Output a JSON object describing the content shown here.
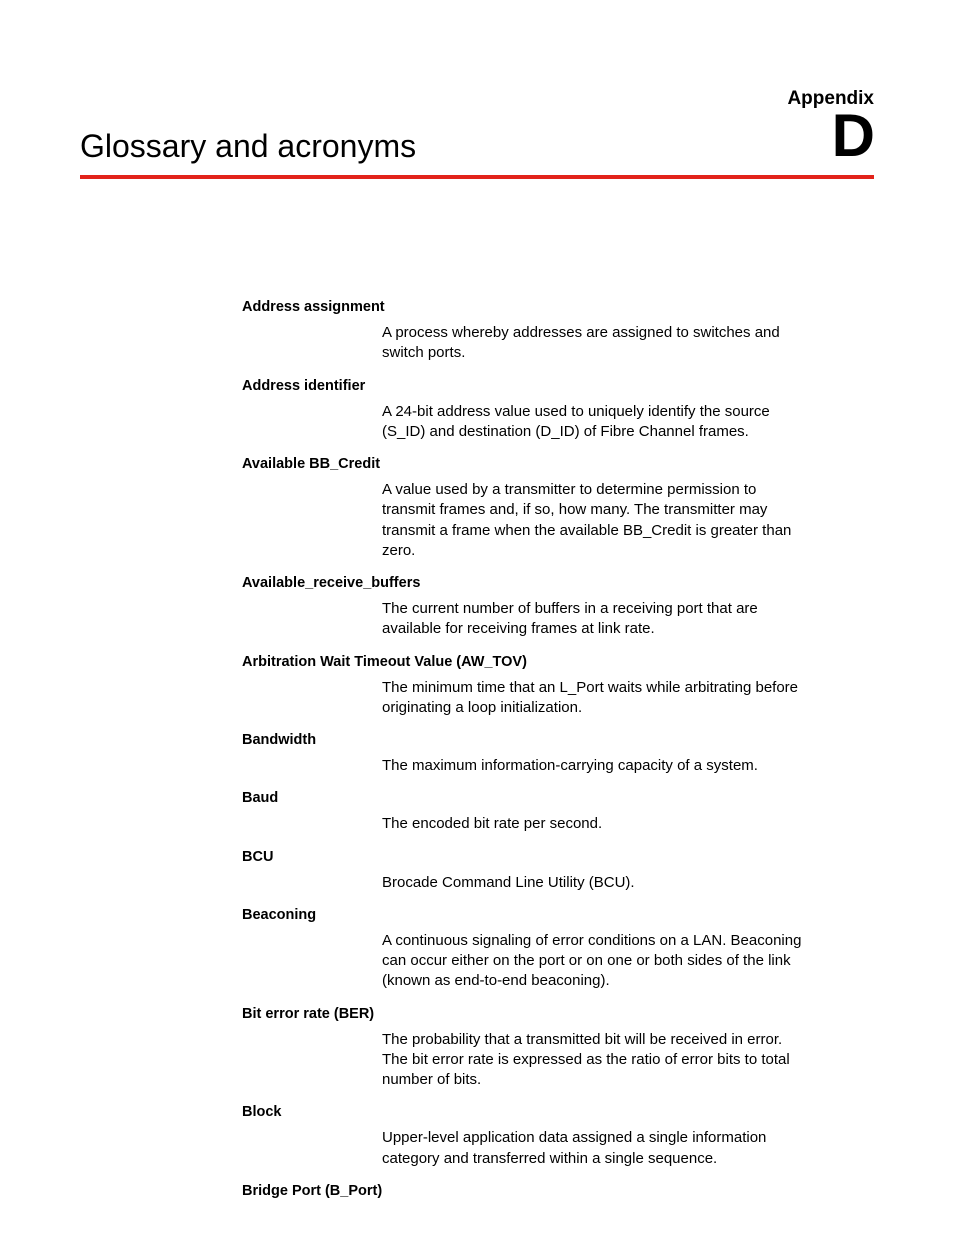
{
  "header": {
    "appendix_label": "Appendix",
    "appendix_letter": "D",
    "title": "Glossary and acronyms"
  },
  "glossary": [
    {
      "term": "Address assignment",
      "definition": "A process whereby addresses are assigned to switches and switch ports."
    },
    {
      "term": "Address identifier",
      "definition": "A 24-bit address value used to uniquely identify the source (S_ID) and destination (D_ID) of Fibre Channel frames."
    },
    {
      "term": "Available BB_Credit",
      "definition": "A value used by a transmitter to determine permission to transmit frames and, if so, how many. The transmitter may transmit a frame when the available BB_Credit is greater than zero."
    },
    {
      "term": "Available_receive_buffers",
      "definition": "The current number of buffers in a receiving port that are available for receiving frames at link rate."
    },
    {
      "term": "Arbitration Wait Timeout Value (AW_TOV)",
      "definition": "The minimum time that an L_Port waits while arbitrating before originating a loop initialization."
    },
    {
      "term": "Bandwidth",
      "definition": "The maximum information-carrying capacity of a system."
    },
    {
      "term": "Baud",
      "definition": "The encoded bit rate per second."
    },
    {
      "term": "BCU",
      "definition": "Brocade Command Line Utility (BCU)."
    },
    {
      "term": "Beaconing",
      "definition": "A continuous signaling of error conditions on a LAN. Beaconing can occur either on the port or on one or both sides of the link (known as end-to-end beaconing)."
    },
    {
      "term": "Bit error rate (BER)",
      "definition": "The probability that a transmitted bit will be received in error. The bit error rate is expressed as the ratio of error bits to total number of bits."
    },
    {
      "term": "Block",
      "definition": "Upper-level application data assigned a single information category and transferred within a single sequence."
    },
    {
      "term": "Bridge Port (B_Port)",
      "definition": ""
    }
  ],
  "colors": {
    "rule": "#e2231a",
    "text": "#000000",
    "background": "#ffffff"
  }
}
